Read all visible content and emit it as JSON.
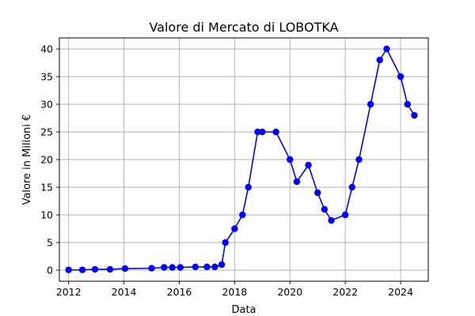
{
  "chart_data": {
    "type": "line",
    "title": "Valore di Mercato di LOBOTKA",
    "xlabel": "Data",
    "ylabel": "Valore in Milioni €",
    "x_is_date": true,
    "xlim": [
      "2011-09-01",
      "2025-01-01"
    ],
    "ylim": [
      -2,
      42
    ],
    "xticks": [
      "2012",
      "2014",
      "2016",
      "2018",
      "2020",
      "2022",
      "2024"
    ],
    "yticks": [
      0,
      5,
      10,
      15,
      20,
      25,
      30,
      35,
      40
    ],
    "grid": true,
    "colors": {
      "series": "#0000ff"
    },
    "series": [
      {
        "x": [
          "2012-01-01",
          "2012-07-01",
          "2012-12-15",
          "2013-07-01",
          "2014-01-15",
          "2015-01-01",
          "2015-06-15",
          "2015-10-01",
          "2016-01-15",
          "2016-08-01",
          "2017-01-01",
          "2017-04-15",
          "2017-07-15",
          "2017-09-01",
          "2018-01-01",
          "2018-04-15",
          "2018-07-01",
          "2018-11-01",
          "2019-01-01",
          "2019-07-01",
          "2020-01-01",
          "2020-04-01",
          "2020-09-01",
          "2021-01-01",
          "2021-04-01",
          "2021-07-01",
          "2022-01-01",
          "2022-04-01",
          "2022-07-01",
          "2022-12-01",
          "2023-04-01",
          "2023-07-01",
          "2024-01-01",
          "2024-04-01",
          "2024-07-01"
        ],
        "y": [
          0.05,
          0.05,
          0.15,
          0.15,
          0.3,
          0.35,
          0.5,
          0.5,
          0.5,
          0.6,
          0.6,
          0.6,
          1,
          5,
          7.5,
          10,
          15,
          25,
          25,
          25,
          20,
          16,
          19,
          14,
          11,
          9,
          10,
          15,
          20,
          30,
          38,
          40,
          35,
          30,
          28
        ]
      }
    ]
  }
}
